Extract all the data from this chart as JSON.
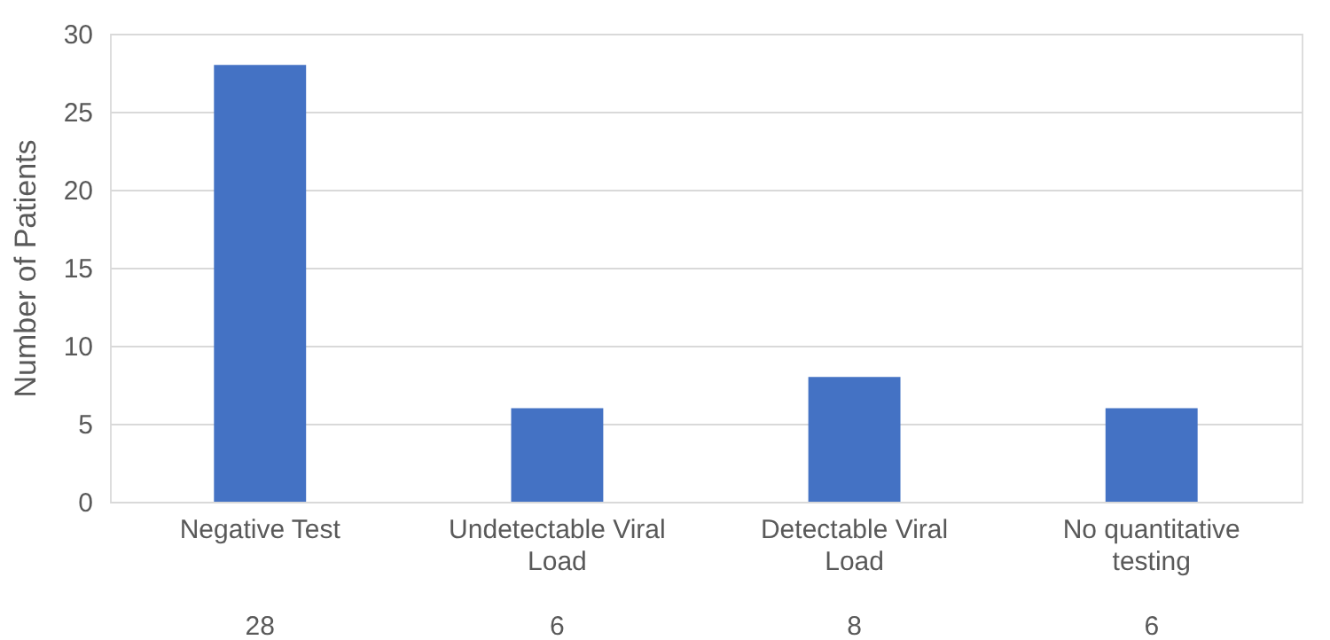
{
  "chart_data": {
    "type": "bar",
    "categories": [
      "Negative Test",
      "Undetectable Viral Load",
      "Detectable Viral Load",
      "No quantitative testing"
    ],
    "values": [
      28,
      6,
      8,
      6
    ],
    "color": "#4472c4",
    "ylabel": "Number of Patients",
    "ylim": [
      0,
      30
    ],
    "yticks": [
      0,
      5,
      10,
      15,
      20,
      25,
      30
    ],
    "grid": "y",
    "data_labels": true
  }
}
